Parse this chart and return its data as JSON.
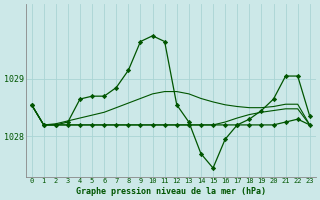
{
  "title": "Graphe pression niveau de la mer (hPa)",
  "bg_color": "#cce8e8",
  "grid_color": "#aad4d4",
  "line_color": "#005500",
  "x_labels": [
    "0",
    "1",
    "2",
    "3",
    "4",
    "5",
    "6",
    "7",
    "8",
    "9",
    "10",
    "11",
    "12",
    "13",
    "14",
    "15",
    "16",
    "17",
    "18",
    "19",
    "20",
    "21",
    "22",
    "23"
  ],
  "y_ticks": [
    1028,
    1029
  ],
  "ylim": [
    1027.3,
    1030.3
  ],
  "series1": [
    1028.55,
    1028.2,
    1028.2,
    1028.25,
    1028.65,
    1028.7,
    1028.7,
    1028.85,
    1029.15,
    1029.65,
    1029.75,
    1029.65,
    1028.55,
    1028.25,
    1027.7,
    1027.45,
    1027.95,
    1028.2,
    1028.3,
    1028.45,
    1028.65,
    1029.05,
    1029.05,
    1028.35
  ],
  "series2": [
    1028.55,
    1028.2,
    1028.2,
    1028.2,
    1028.2,
    1028.2,
    1028.2,
    1028.2,
    1028.2,
    1028.2,
    1028.2,
    1028.2,
    1028.2,
    1028.2,
    1028.2,
    1028.2,
    1028.2,
    1028.2,
    1028.2,
    1028.2,
    1028.2,
    1028.25,
    1028.3,
    1028.2
  ],
  "series3": [
    1028.55,
    1028.2,
    1028.22,
    1028.27,
    1028.32,
    1028.37,
    1028.42,
    1028.5,
    1028.58,
    1028.66,
    1028.74,
    1028.78,
    1028.78,
    1028.74,
    1028.66,
    1028.6,
    1028.55,
    1028.52,
    1028.5,
    1028.5,
    1028.52,
    1028.56,
    1028.56,
    1028.2
  ],
  "series4": [
    1028.55,
    1028.2,
    1028.2,
    1028.2,
    1028.2,
    1028.2,
    1028.2,
    1028.2,
    1028.2,
    1028.2,
    1028.2,
    1028.2,
    1028.2,
    1028.2,
    1028.2,
    1028.2,
    1028.25,
    1028.32,
    1028.38,
    1028.42,
    1028.45,
    1028.48,
    1028.48,
    1028.2
  ]
}
